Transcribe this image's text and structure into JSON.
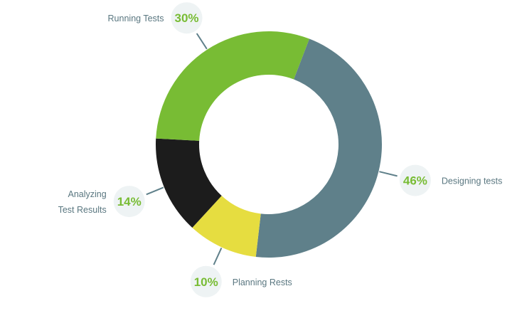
{
  "chart_data": {
    "type": "pie",
    "variant": "donut",
    "title": "",
    "slices": [
      {
        "label": "Designing tests",
        "label_lines": [
          "Designing tests"
        ],
        "value": 46,
        "display": "46%",
        "color": "#5f808a"
      },
      {
        "label": "Planning Rests",
        "label_lines": [
          "Planning Rests"
        ],
        "value": 10,
        "display": "10%",
        "color": "#e6dd40"
      },
      {
        "label": "Analyzing Test Results",
        "label_lines": [
          "Analyzing",
          "Test Results"
        ],
        "value": 14,
        "display": "14%",
        "color": "#1c1c1c"
      },
      {
        "label": "Running Tests",
        "label_lines": [
          "Running Tests"
        ],
        "value": 30,
        "display": "30%",
        "color": "#78bc34"
      }
    ],
    "colors": {
      "percent_text": "#78bc34",
      "label_text": "#5a7780",
      "badge_fill": "#eef3f4",
      "leader_line": "#5f808a"
    }
  }
}
